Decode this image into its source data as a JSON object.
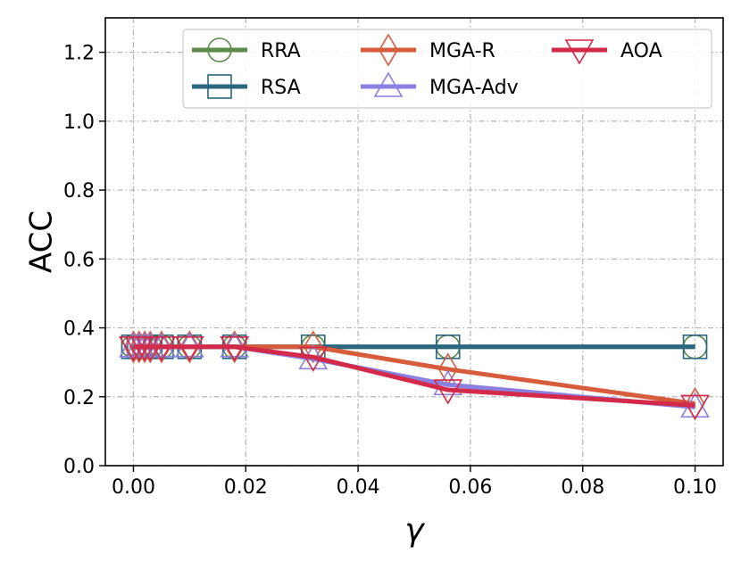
{
  "chart_data": {
    "type": "line",
    "title": "",
    "xlabel": "γ",
    "ylabel": "ACC",
    "xlim": [
      -0.005,
      0.105
    ],
    "ylim": [
      0.0,
      1.3
    ],
    "x_ticks": [
      0.0,
      0.02,
      0.04,
      0.06,
      0.08,
      0.1
    ],
    "x_tick_labels": [
      "0.00",
      "0.02",
      "0.04",
      "0.06",
      "0.08",
      "0.10"
    ],
    "y_ticks": [
      0.0,
      0.2,
      0.4,
      0.6,
      0.8,
      1.0,
      1.2
    ],
    "y_tick_labels": [
      "0.0",
      "0.2",
      "0.4",
      "0.6",
      "0.8",
      "1.0",
      "1.2"
    ],
    "grid": true,
    "legend_position": "top-right",
    "x": [
      0.0,
      0.001,
      0.002,
      0.003,
      0.005,
      0.01,
      0.018,
      0.032,
      0.056,
      0.1
    ],
    "series": [
      {
        "name": "RRA",
        "color": "#5b8a4a",
        "marker": "circle",
        "values": [
          0.345,
          0.345,
          0.345,
          0.345,
          0.345,
          0.345,
          0.345,
          0.345,
          0.345,
          0.345
        ]
      },
      {
        "name": "RSA",
        "color": "#2a6680",
        "marker": "square",
        "values": [
          0.345,
          0.345,
          0.345,
          0.345,
          0.345,
          0.345,
          0.345,
          0.345,
          0.345,
          0.345
        ]
      },
      {
        "name": "MGA-R",
        "color": "#d65c3c",
        "marker": "diamond",
        "values": [
          0.345,
          0.345,
          0.345,
          0.345,
          0.345,
          0.345,
          0.345,
          0.345,
          0.28,
          0.18
        ]
      },
      {
        "name": "MGA-Adv",
        "color": "#8b7fe0",
        "marker": "triangle-up",
        "values": [
          0.345,
          0.345,
          0.345,
          0.345,
          0.345,
          0.345,
          0.345,
          0.31,
          0.235,
          0.17
        ]
      },
      {
        "name": "AOA",
        "color": "#d42a4a",
        "marker": "triangle-down",
        "values": [
          0.345,
          0.345,
          0.345,
          0.345,
          0.345,
          0.345,
          0.345,
          0.315,
          0.22,
          0.175
        ]
      }
    ]
  }
}
